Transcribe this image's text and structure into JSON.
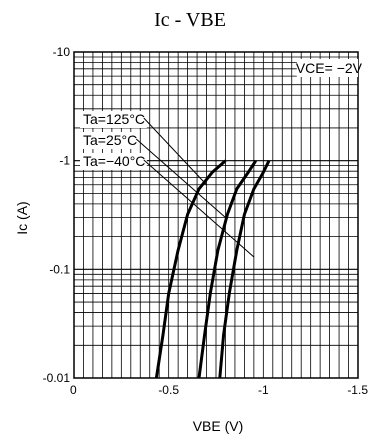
{
  "chart_data": {
    "type": "line",
    "title": "Ic  -  VBE",
    "xlabel": "VBE (V)",
    "ylabel": "Ic (A)",
    "x_tick_labels": [
      "0",
      "-0.5",
      "-1",
      "-1.5"
    ],
    "x_tick_values": [
      0,
      -0.5,
      -1,
      -1.5
    ],
    "y_tick_labels": [
      "-10",
      "-1",
      "-0.1",
      "-0.01"
    ],
    "y_tick_values": [
      -10,
      -1,
      -0.1,
      -0.01
    ],
    "xlim": [
      0,
      -1.5
    ],
    "ylim": [
      -0.01,
      -10
    ],
    "y_scale": "log",
    "grid": true,
    "condition_label": "VCE= −2V",
    "series": [
      {
        "name": "Ta=125°C",
        "x": [
          -0.435,
          -0.47,
          -0.5,
          -0.55,
          -0.6,
          -0.66,
          -0.73,
          -0.8
        ],
        "y": [
          -0.01,
          -0.025,
          -0.06,
          -0.15,
          -0.32,
          -0.55,
          -0.78,
          -1.0
        ]
      },
      {
        "name": "Ta=25°C",
        "x": [
          -0.66,
          -0.69,
          -0.72,
          -0.76,
          -0.81,
          -0.86,
          -0.92,
          -0.96
        ],
        "y": [
          -0.01,
          -0.025,
          -0.06,
          -0.15,
          -0.32,
          -0.55,
          -0.78,
          -1.0
        ]
      },
      {
        "name": "Ta=−40°C",
        "x": [
          -0.77,
          -0.79,
          -0.82,
          -0.86,
          -0.9,
          -0.95,
          -1.0,
          -1.03
        ],
        "y": [
          -0.01,
          -0.025,
          -0.06,
          -0.15,
          -0.32,
          -0.55,
          -0.78,
          -1.0
        ]
      }
    ],
    "annotation_targets": [
      {
        "x": -0.7,
        "y": -0.6
      },
      {
        "x": -0.8,
        "y": -0.3
      },
      {
        "x": -0.95,
        "y": -0.13
      }
    ]
  }
}
